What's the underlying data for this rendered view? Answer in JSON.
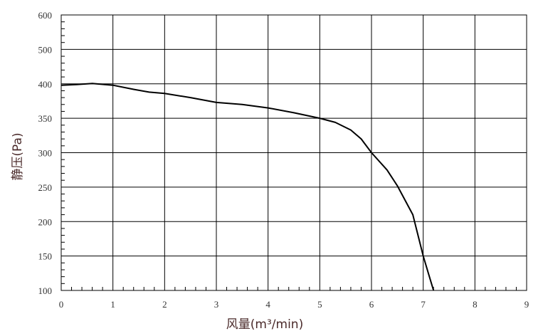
{
  "chart_data": {
    "type": "line",
    "title": "",
    "xlabel": "风量(m³/min)",
    "ylabel": "静压(Pa)",
    "xlim": [
      0,
      9
    ],
    "x_ticks": [
      "0",
      "1",
      "2",
      "3",
      "4",
      "5",
      "6",
      "7",
      "8",
      "9"
    ],
    "y_ticks": [
      "100",
      "150",
      "200",
      "250",
      "300",
      "350",
      "400",
      "500",
      "600"
    ],
    "y_tick_values": [
      100,
      150,
      200,
      250,
      300,
      350,
      400,
      500,
      600
    ],
    "y_axis_note": "equal spacing between tick labels (non-uniform scale above 400)",
    "grid": true,
    "series": [
      {
        "color": "#000000",
        "x": [
          0,
          0.3,
          0.6,
          1.0,
          1.4,
          1.7,
          2.0,
          2.5,
          3.0,
          3.5,
          4.0,
          4.5,
          5.0,
          5.3,
          5.6,
          5.8,
          6.0,
          6.3,
          6.5,
          6.8,
          7.0,
          7.1,
          7.2
        ],
        "y": [
          398,
          399,
          401,
          398,
          392,
          388,
          386,
          380,
          373,
          370,
          365,
          358,
          350,
          344,
          333,
          320,
          300,
          275,
          252,
          210,
          150,
          125,
          100
        ]
      }
    ]
  }
}
